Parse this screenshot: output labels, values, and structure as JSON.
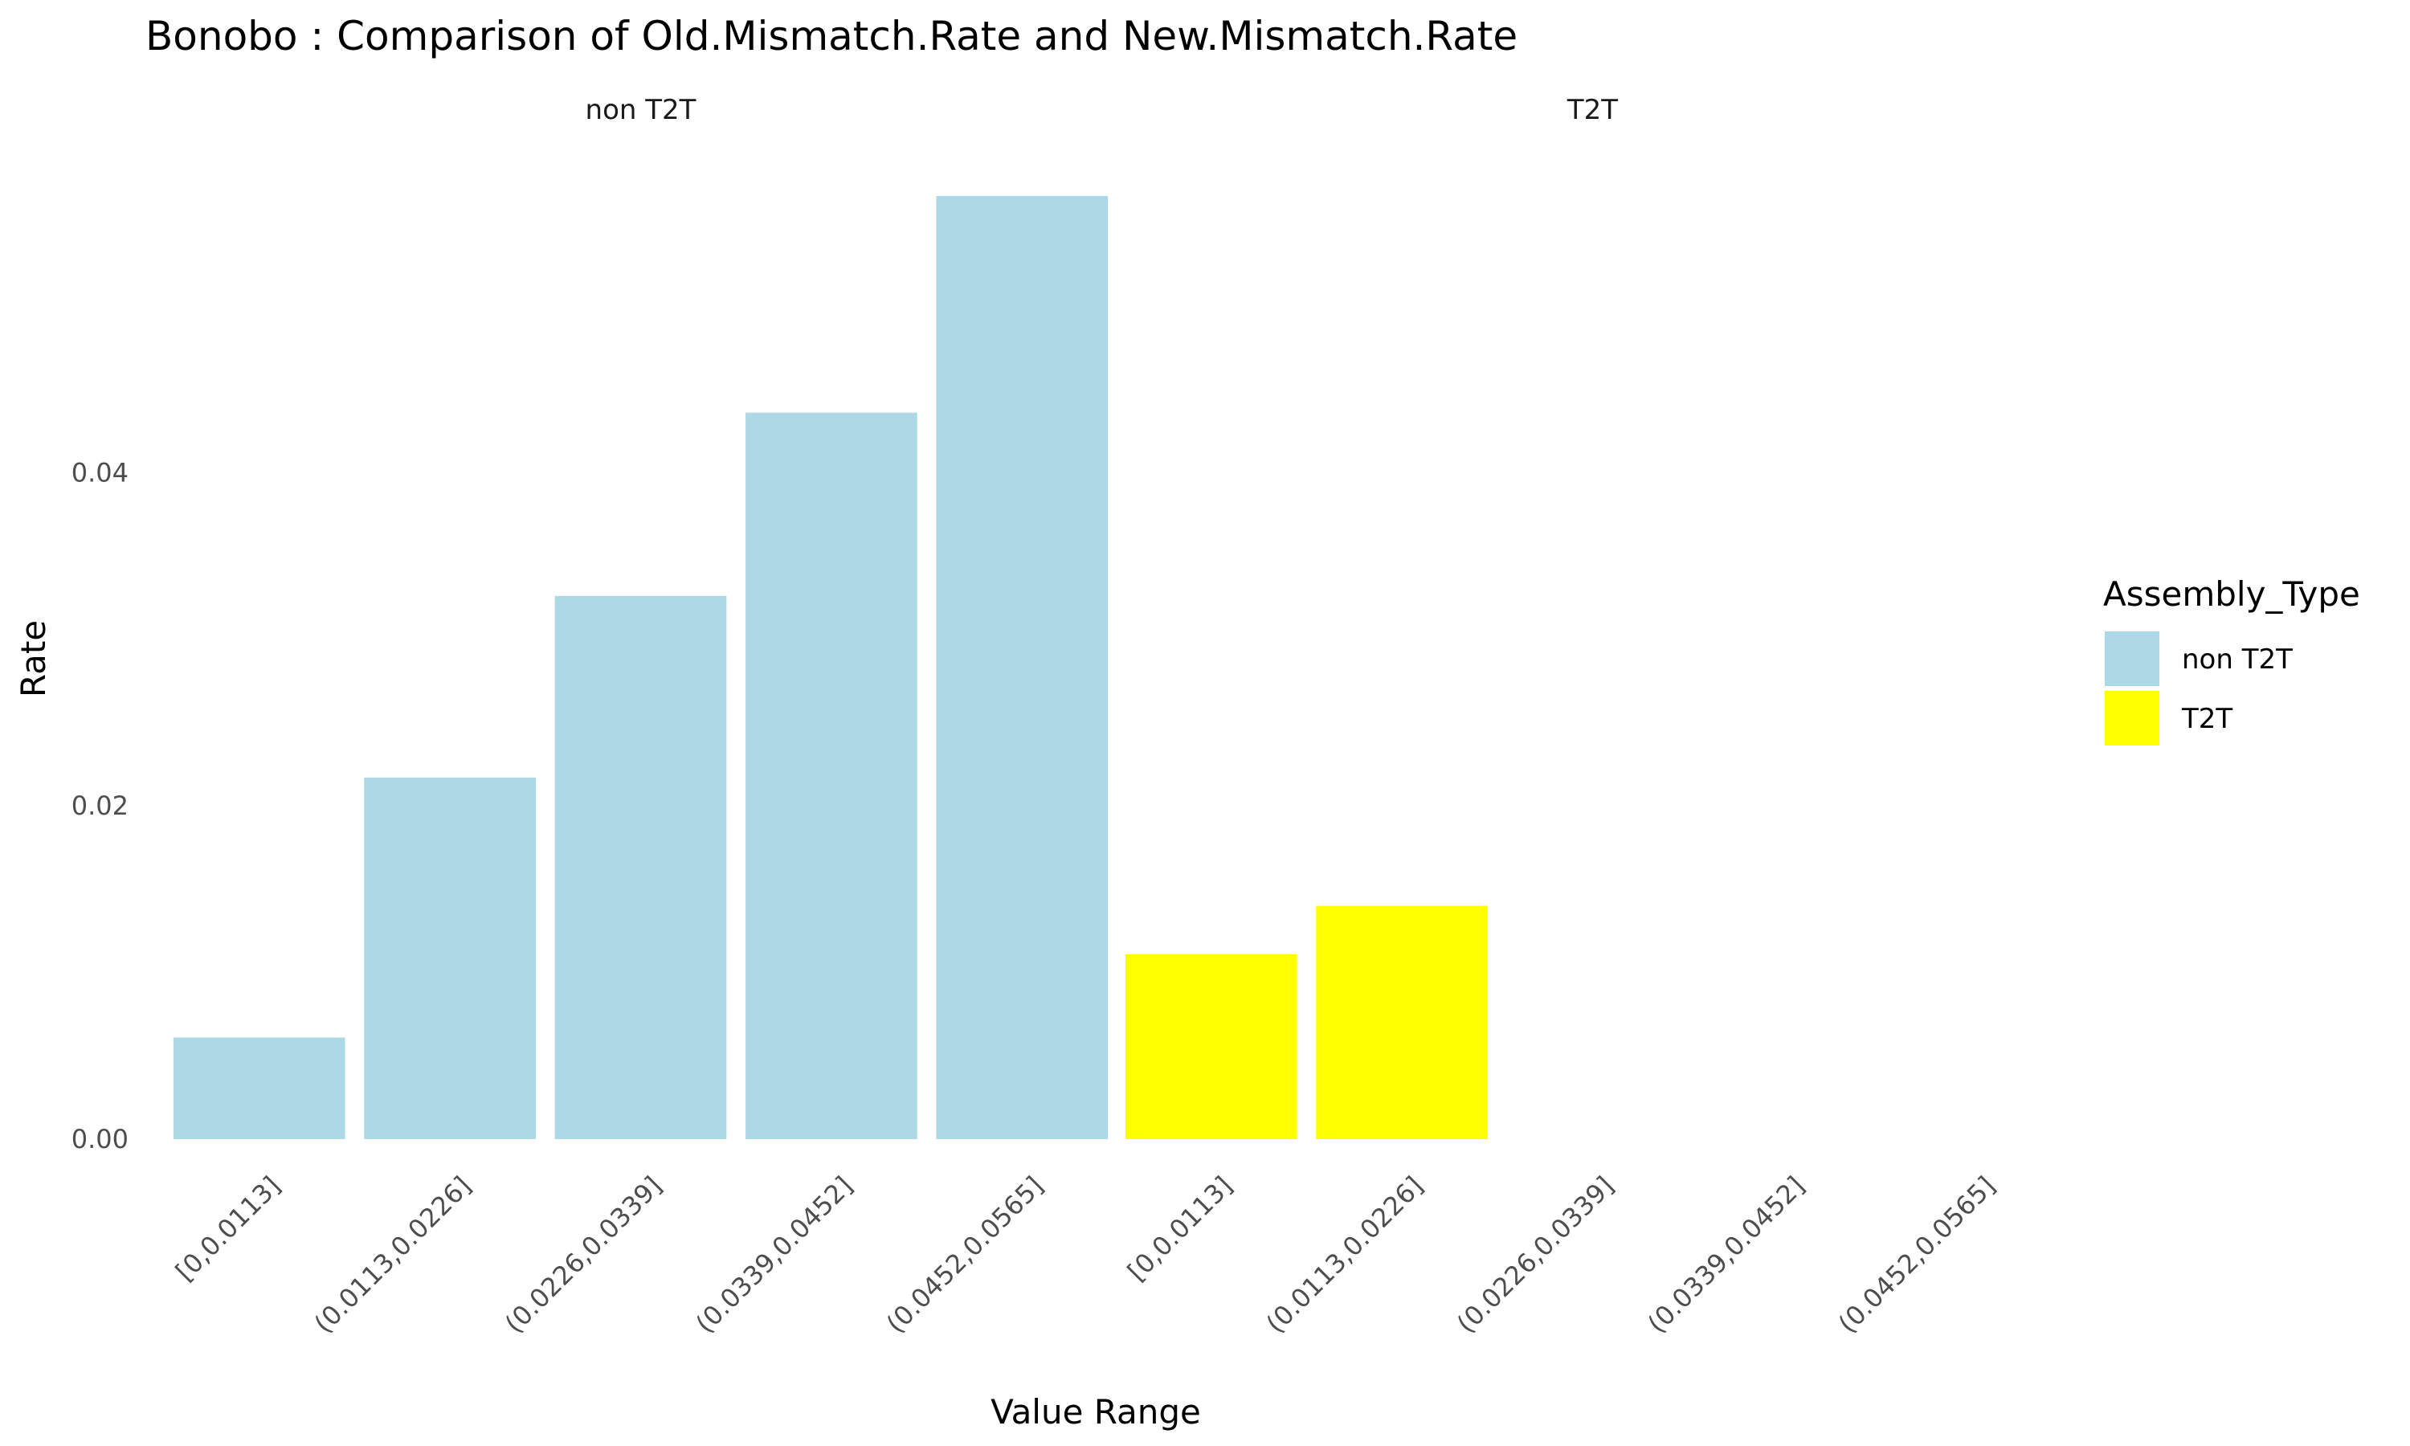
{
  "chart_data": {
    "type": "bar",
    "title": "Bonobo : Comparison of Old.Mismatch.Rate and New.Mismatch.Rate",
    "xlabel": "Value Range",
    "ylabel": "Rate",
    "ylim": [
      0,
      0.058
    ],
    "yticks": [
      "0.00",
      "0.02",
      "0.04"
    ],
    "ytick_values": [
      0,
      0.02,
      0.04
    ],
    "categories": [
      "[0,0.0113]",
      "(0.0113,0.0226]",
      "(0.0226,0.0339]",
      "(0.0339,0.0452]",
      "(0.0452,0.0565]"
    ],
    "grid": false,
    "facets": [
      {
        "label": "non T2T",
        "values": [
          0.0061,
          0.0217,
          0.0326,
          0.0436,
          0.0566
        ],
        "color": "#add8e6"
      },
      {
        "label": "T2T",
        "values": [
          0.0111,
          0.014,
          0,
          0,
          0
        ],
        "color": "#ffff00"
      }
    ],
    "legend": {
      "title": "Assembly_Type",
      "position": "right",
      "items": [
        {
          "label": "non T2T",
          "color": "#add8e6"
        },
        {
          "label": "T2T",
          "color": "#ffff00"
        }
      ]
    }
  }
}
